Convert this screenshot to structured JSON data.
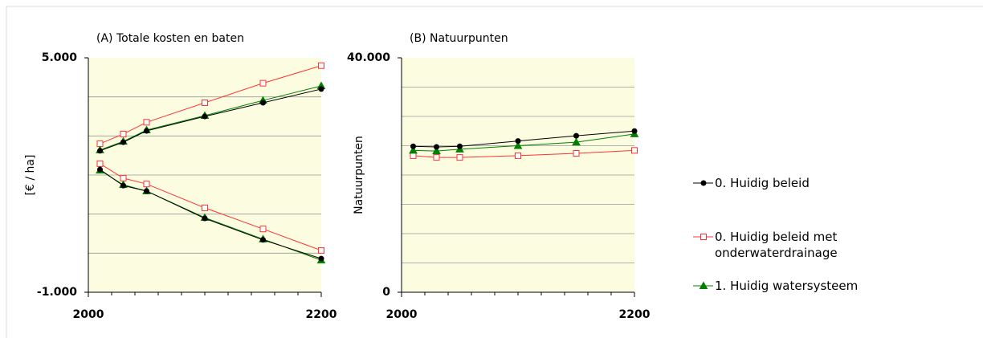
{
  "legend": [
    {
      "name": "0. Huidig beleid",
      "color": "#000000",
      "marker": "circle"
    },
    {
      "name": "0. Huidig beleid met onderwaterdrainage",
      "color": "#ff3333",
      "marker": "square"
    },
    {
      "name": "1. Huidig watersysteem",
      "color": "#008000",
      "marker": "triangle"
    }
  ],
  "chart_data": [
    {
      "type": "line",
      "title": "(A) Totale kosten en baten",
      "ylabel": "[€ / ha]",
      "x": [
        2010,
        2030,
        2050,
        2100,
        2150,
        2200
      ],
      "xlim": [
        2000,
        2200
      ],
      "xticks": [
        2000,
        2200
      ],
      "minor_xticks": [
        2020,
        2040,
        2060,
        2080,
        2100,
        2120,
        2140,
        2160,
        2180
      ],
      "ylim": [
        -1000,
        5000
      ],
      "yticks": [
        {
          "value": -1000,
          "label": "-1.000"
        },
        {
          "value": 5000,
          "label": "5.000"
        }
      ],
      "minor_yticks": [
        0,
        1000,
        2000,
        3000,
        4000
      ],
      "grid": true,
      "series": [
        {
          "color": "#ff3333",
          "marker": "square",
          "values": [
            2800,
            3050,
            3350,
            3850,
            4350,
            4800
          ]
        },
        {
          "color": "#ff3333",
          "marker": "square",
          "values": [
            2290,
            1920,
            1770,
            1160,
            620,
            70
          ]
        },
        {
          "color": "#008000",
          "marker": "triangle",
          "values": [
            2640,
            2860,
            3150,
            3520,
            3910,
            4280
          ]
        },
        {
          "color": "#008000",
          "marker": "triangle",
          "values": [
            2120,
            1750,
            1590,
            910,
            360,
            -180
          ]
        },
        {
          "color": "#000000",
          "marker": "circle",
          "values": [
            2620,
            2840,
            3130,
            3500,
            3850,
            4200
          ]
        },
        {
          "color": "#000000",
          "marker": "circle",
          "values": [
            2140,
            1730,
            1590,
            890,
            340,
            -140
          ]
        }
      ]
    },
    {
      "type": "line",
      "title": "(B) Natuurpunten",
      "ylabel": "Natuurpunten",
      "x": [
        2010,
        2030,
        2050,
        2100,
        2150,
        2200
      ],
      "xlim": [
        2000,
        2200
      ],
      "xticks": [
        2000,
        2200
      ],
      "minor_xticks": [
        2020,
        2040,
        2060,
        2080,
        2100,
        2120,
        2140,
        2160,
        2180
      ],
      "ylim": [
        0,
        40000
      ],
      "yticks": [
        0,
        {
          "value": 40000,
          "label": "40.000"
        }
      ],
      "minor_yticks": [
        5000,
        10000,
        15000,
        20000,
        25000,
        30000,
        35000
      ],
      "grid": true,
      "series": [
        {
          "color": "#ff3333",
          "marker": "square",
          "values": [
            23300,
            23000,
            23000,
            23300,
            23700,
            24200
          ]
        },
        {
          "color": "#008000",
          "marker": "triangle",
          "values": [
            24200,
            24100,
            24400,
            25000,
            25600,
            27000
          ]
        },
        {
          "color": "#000000",
          "marker": "circle",
          "values": [
            24900,
            24800,
            24900,
            25800,
            26700,
            27500
          ]
        }
      ]
    }
  ]
}
